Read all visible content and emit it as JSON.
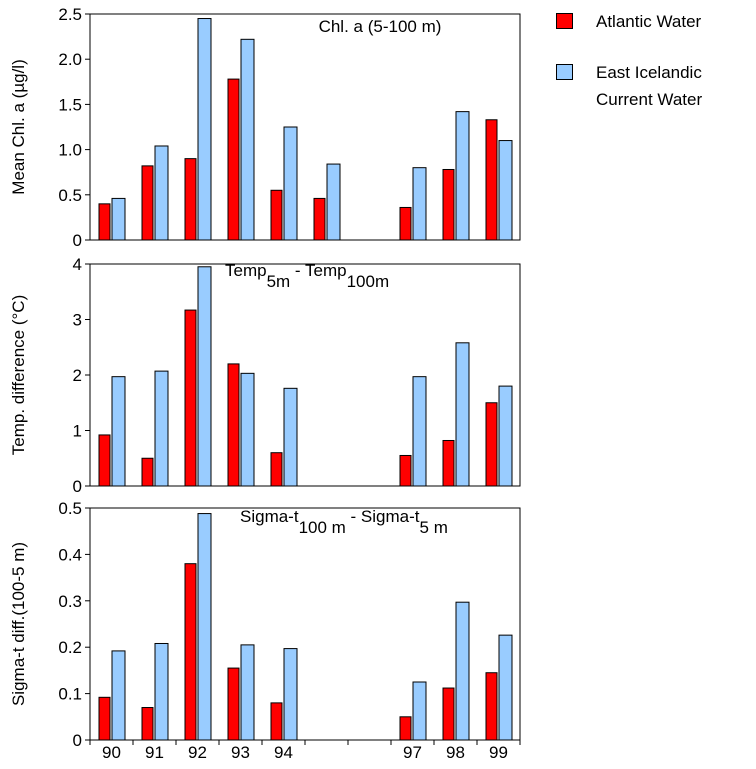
{
  "chart_data": [
    {
      "type": "bar",
      "title": "Chl. a (5-100 m)",
      "ylabel": "Mean Chl. a (µg/l)",
      "ylim": [
        0,
        2.5
      ],
      "yticks": [
        0,
        0.5,
        {
          "value": 1,
          "label": "1.0"
        },
        1.5,
        {
          "value": 2,
          "label": "2.0"
        },
        2.5
      ],
      "series": [
        {
          "name": "Atlantic Water",
          "color": "#ff0000",
          "values": [
            0.4,
            0.82,
            0.9,
            1.78,
            0.55,
            0.46,
            null,
            0.36,
            0.78,
            1.33
          ]
        },
        {
          "name": "East Icelandic Current Water",
          "color": "#99ccff",
          "values": [
            0.46,
            1.04,
            2.45,
            2.22,
            1.25,
            0.84,
            null,
            0.8,
            1.42,
            1.1
          ]
        }
      ]
    },
    {
      "type": "bar",
      "title_parts": [
        {
          "text": "Temp"
        },
        {
          "text": "5m",
          "sub": true
        },
        {
          "text": " - Temp"
        },
        {
          "text": "100m",
          "sub": true
        }
      ],
      "ylabel": "Temp. difference (°C)",
      "ylim": [
        0,
        4
      ],
      "yticks": [
        0,
        1,
        2,
        3,
        4
      ],
      "series": [
        {
          "values": [
            0.92,
            0.5,
            3.17,
            2.2,
            0.6,
            null,
            null,
            0.55,
            0.82,
            1.5
          ]
        },
        {
          "values": [
            1.97,
            2.07,
            3.95,
            2.03,
            1.76,
            null,
            null,
            1.97,
            2.58,
            1.8
          ]
        }
      ]
    },
    {
      "type": "bar",
      "title_parts": [
        {
          "text": "Sigma-t"
        },
        {
          "text": "100 m",
          "sub": true
        },
        {
          "text": " - Sigma-t"
        },
        {
          "text": "5 m",
          "sub": true
        }
      ],
      "ylabel": "Sigma-t diff.(100-5 m)",
      "ylim": [
        0,
        0.5
      ],
      "yticks": [
        0,
        0.1,
        0.2,
        0.3,
        0.4,
        0.5
      ],
      "categories": [
        "90",
        "91",
        "92",
        "93",
        "94",
        null,
        null,
        "97",
        "98",
        "99"
      ],
      "series": [
        {
          "values": [
            0.092,
            0.07,
            0.38,
            0.155,
            0.08,
            null,
            null,
            0.05,
            0.112,
            0.145
          ]
        },
        {
          "values": [
            0.192,
            0.208,
            0.488,
            0.205,
            0.197,
            null,
            null,
            0.125,
            0.297,
            0.226
          ]
        }
      ]
    }
  ]
}
